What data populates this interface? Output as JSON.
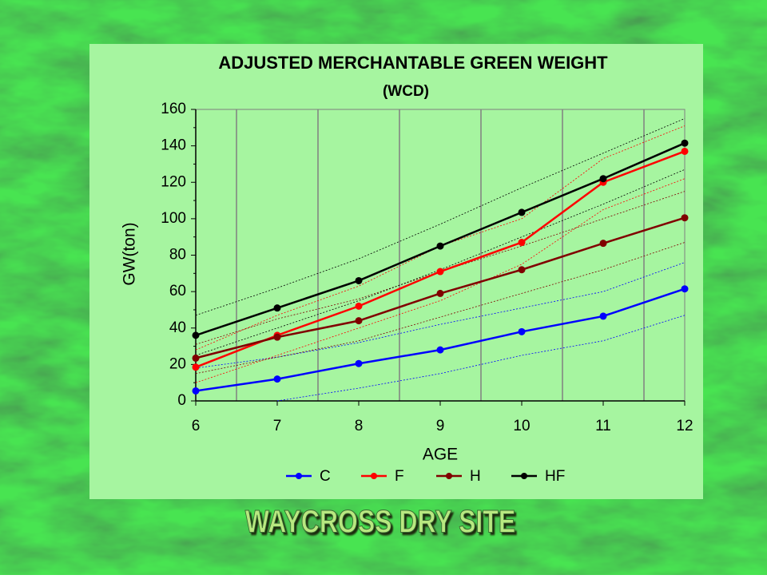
{
  "chart_data": {
    "type": "line",
    "title": "ADJUSTED MERCHANTABLE GREEN WEIGHT",
    "subtitle": "(WCD)",
    "x_label": "AGE",
    "y_label": "GW(ton)",
    "x": [
      6,
      7,
      8,
      9,
      10,
      11,
      12
    ],
    "xlim": [
      6,
      12
    ],
    "xticks": [
      6,
      7,
      8,
      9,
      10,
      11,
      12
    ],
    "ylim": [
      0,
      160
    ],
    "yticks": [
      0,
      20,
      40,
      60,
      80,
      100,
      120,
      140,
      160
    ],
    "series": [
      {
        "name": "C",
        "color": "#0000ff",
        "values": [
          5.5,
          12,
          20.5,
          28,
          38,
          46.5,
          61.5
        ],
        "lower": [
          null,
          0,
          7,
          15,
          25,
          33,
          47
        ],
        "upper": [
          18,
          24,
          32,
          42,
          51,
          60,
          76
        ]
      },
      {
        "name": "F",
        "color": "#ff0000",
        "values": [
          18.5,
          36,
          52,
          71,
          87,
          120,
          137
        ],
        "lower": [
          10,
          25,
          40,
          55,
          75,
          105,
          122
        ],
        "upper": [
          28,
          47,
          63,
          85,
          100,
          133,
          151
        ]
      },
      {
        "name": "H",
        "color": "#800000",
        "values": [
          23.5,
          35,
          44,
          59,
          72,
          86.5,
          100.5
        ],
        "lower": [
          15,
          24,
          33,
          46,
          59,
          72,
          87
        ],
        "upper": [
          31,
          45,
          56,
          71,
          85,
          100,
          115
        ]
      },
      {
        "name": "HF",
        "color": "#000000",
        "values": [
          36,
          51,
          66,
          85,
          103.5,
          122,
          141.5
        ],
        "lower": [
          25,
          40,
          55,
          72,
          90,
          108,
          127
        ],
        "upper": [
          47,
          62,
          78,
          97,
          117,
          136,
          155
        ]
      }
    ],
    "legend": "bottom"
  },
  "footer": "WAYCROSS DRY SITE"
}
